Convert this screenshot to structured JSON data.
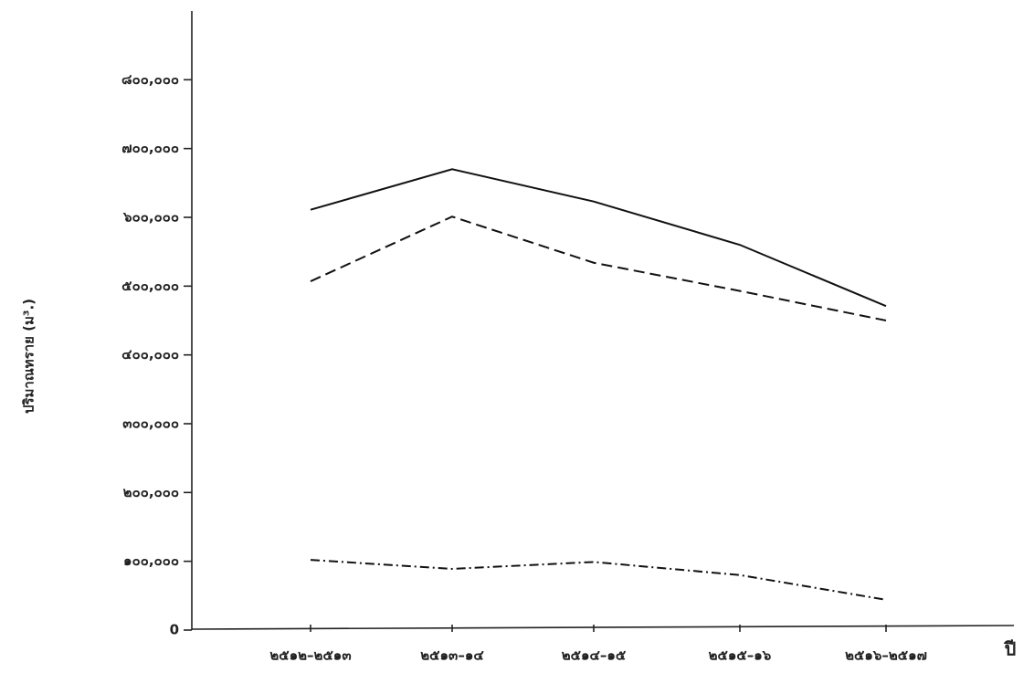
{
  "chart_data": {
    "type": "line",
    "y_label": "ปริมาณทราย (ม³.)",
    "x_label": "ปี",
    "categories": [
      "๒๕๑๒–๒๕๑๓",
      "๒๕๑๓–๑๔",
      "๒๕๑๔–๑๕",
      "๒๕๑๕–๑๖",
      "๒๕๑๖–๒๕๑๗"
    ],
    "series": [
      {
        "color": "#111111",
        "dash": "solid",
        "values": [
          611000,
          670000,
          623000,
          560000,
          471000
        ]
      },
      {
        "color": "#111111",
        "dash": "dashed",
        "values": [
          507000,
          601000,
          534000,
          493000,
          450000
        ]
      },
      {
        "color": "#111111",
        "dash": "dashdot",
        "values": [
          102000,
          89000,
          99000,
          80000,
          44000
        ]
      }
    ],
    "ylim": [
      0,
      900000
    ],
    "yticks": [
      0,
      {
        "value": 100000,
        "label": "๑๐๐,๐๐๐"
      },
      {
        "value": 200000,
        "label": "๒๐๐,๐๐๐"
      },
      {
        "value": 300000,
        "label": "๓๐๐,๐๐๐"
      },
      {
        "value": 400000,
        "label": "๔๐๐,๐๐๐"
      },
      {
        "value": 500000,
        "label": "๕๐๐,๐๐๐"
      },
      {
        "value": 600000,
        "label": "๖๐๐,๐๐๐"
      },
      {
        "value": 700000,
        "label": "๗๐๐,๐๐๐"
      },
      {
        "value": 800000,
        "label": "๘๐๐,๐๐๐"
      }
    ],
    "grid": false
  }
}
